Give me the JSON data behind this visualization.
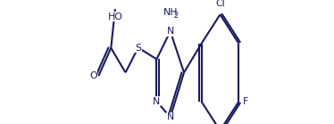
{
  "bg_color": "#ffffff",
  "line_color": "#1a1a5e",
  "text_color": "#1a1a5e",
  "line_width": 1.5,
  "font_size": 7.8,
  "fig_width": 3.74,
  "fig_height": 1.39,
  "dpi": 100,
  "xlim": [
    -0.05,
    1.05
  ],
  "ylim": [
    0.15,
    0.95
  ]
}
